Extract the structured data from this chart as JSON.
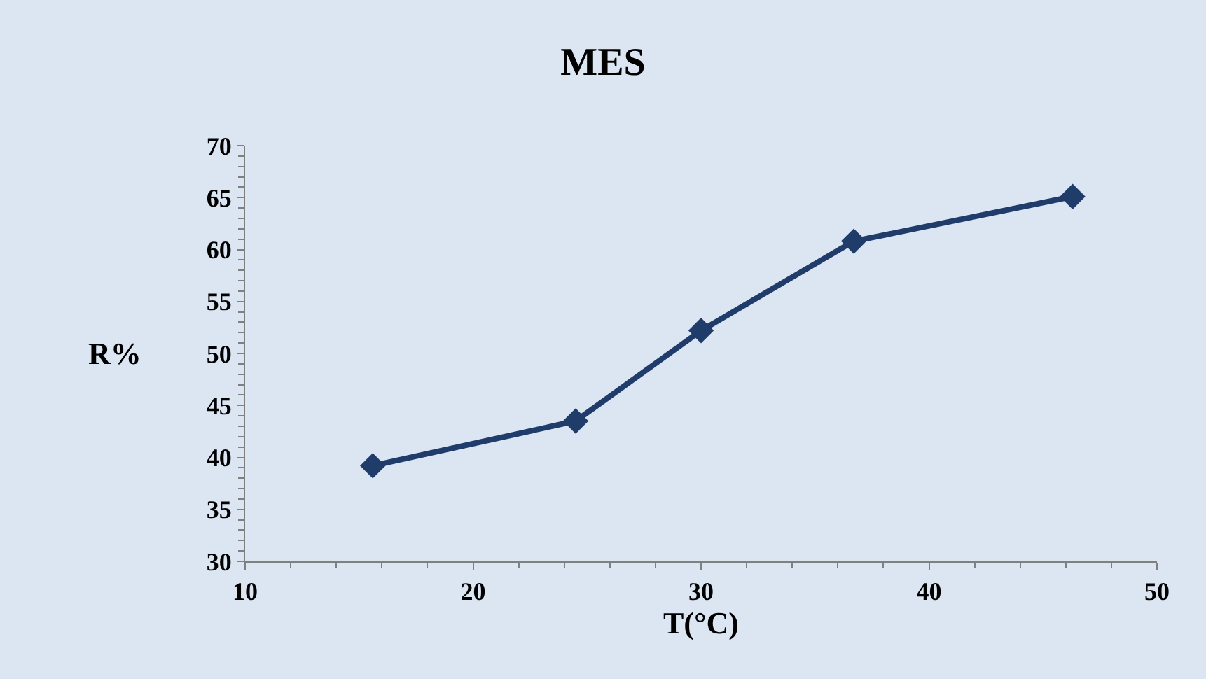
{
  "chart_data": {
    "type": "line",
    "title": "MES",
    "xlabel": "T(°C)",
    "ylabel": "R%",
    "x": [
      15.6,
      24.5,
      30.0,
      36.7,
      46.3
    ],
    "series": [
      {
        "color": "#1f3c6a",
        "values": [
          39.2,
          43.5,
          52.2,
          60.8,
          65.1
        ]
      }
    ],
    "xlim": [
      10,
      50
    ],
    "xticks": [
      10,
      20,
      30,
      40,
      50
    ],
    "ylim": [
      30,
      70
    ],
    "yticks": [
      30,
      35,
      40,
      45,
      50,
      55,
      60,
      65,
      70
    ],
    "grid": false,
    "marker": "diamond",
    "line_style": "solid"
  }
}
